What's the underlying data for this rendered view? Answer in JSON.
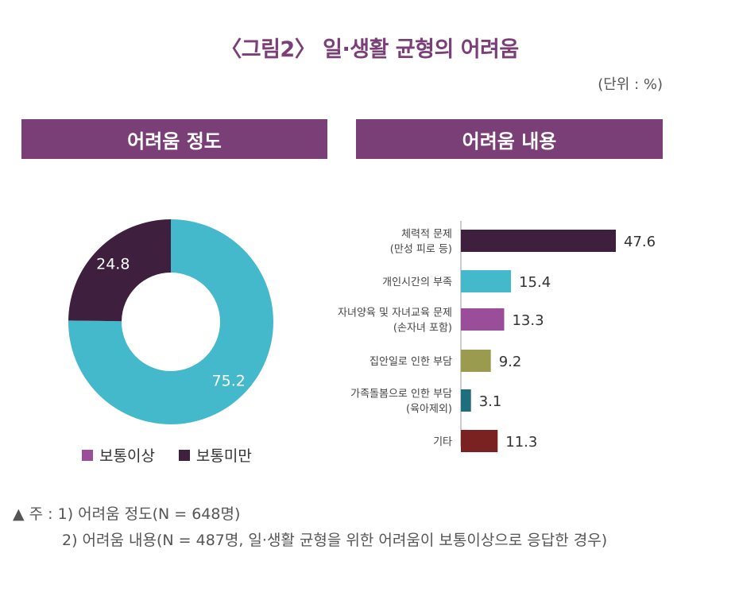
{
  "title": "〈그림2〉 일·생활 균형의 어려움",
  "unit": "(단위 : %)",
  "panels": {
    "left_header": "어려움 정도",
    "right_header": "어려움 내용"
  },
  "colors": {
    "header": "#7b3f78",
    "title": "#7b3f78",
    "donut_above": "#45b9cc",
    "donut_below": "#3e1f3d",
    "legend_above_swatch": "#9a4d98",
    "legend_below_swatch": "#3e1f3d"
  },
  "legend": [
    {
      "label": "보통이상",
      "color": "#9a4d98"
    },
    {
      "label": "보통미만",
      "color": "#3e1f3d"
    }
  ],
  "notes": [
    "▲ 주 : 1) 어려움 정도(N = 648명)",
    "2) 어려움 내용(N = 487명, 일·생활 균형을 위한 어려움이 보통이상으로 응답한 경우)"
  ],
  "chart_data": [
    {
      "type": "pie",
      "title": "어려움 정도",
      "labels": [
        "보통이상",
        "보통미만"
      ],
      "values": [
        75.2,
        24.8
      ],
      "colors": [
        "#45b9cc",
        "#3e1f3d"
      ],
      "donut": true
    },
    {
      "type": "bar",
      "orientation": "horizontal",
      "title": "어려움 내용",
      "categories": [
        [
          "체력적 문제",
          "(만성 피로 등)"
        ],
        [
          "개인시간의 부족"
        ],
        [
          "자녀양육 및 자녀교육 문제",
          "(손자녀 포함)"
        ],
        [
          "집안일로 인한 부담"
        ],
        [
          "가족돌봄으로 인한 부담",
          "(육아제외)"
        ],
        [
          "기타"
        ]
      ],
      "values": [
        47.6,
        15.4,
        13.3,
        9.2,
        3.1,
        11.3
      ],
      "value_labels": [
        "47.6",
        "15.4",
        "13.3",
        "9.2",
        "3.1",
        "11.3"
      ],
      "colors": [
        "#3e1f3d",
        "#45b9cc",
        "#9a4d98",
        "#9a9b4f",
        "#1f6e7e",
        "#7a2222"
      ],
      "xlim": [
        0,
        50
      ],
      "grid": false
    }
  ]
}
